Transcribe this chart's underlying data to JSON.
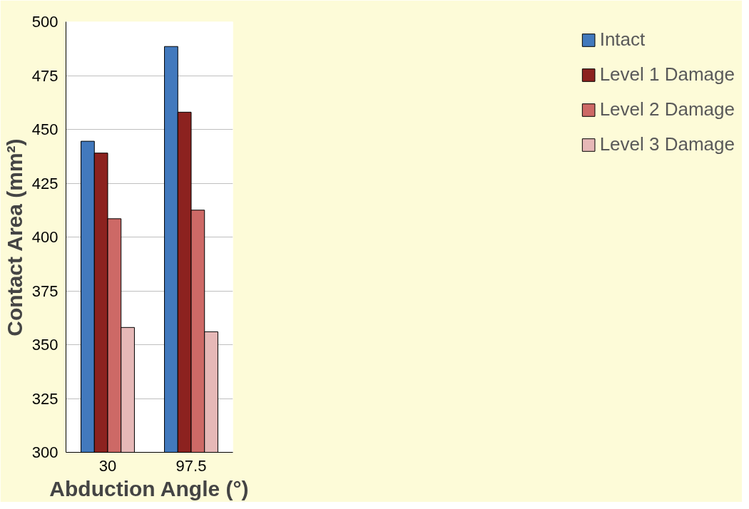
{
  "chart_data": {
    "type": "bar",
    "xlabel": "Abduction Angle (°)",
    "ylabel": "Contact Area (mm²)",
    "categories": [
      "30",
      "97.5"
    ],
    "series": [
      {
        "name": "Intact",
        "color": "#4279bd",
        "values": [
          444.5,
          488.5
        ]
      },
      {
        "name": "Level 1 Damage",
        "color": "#8c221f",
        "values": [
          439,
          458
        ]
      },
      {
        "name": "Level 2 Damage",
        "color": "#cd6966",
        "values": [
          408.5,
          412.5
        ]
      },
      {
        "name": "Level 3 Damage",
        "color": "#e6b8b7",
        "values": [
          358,
          356
        ]
      }
    ],
    "ylim": [
      300,
      500
    ],
    "yticks": [
      300,
      325,
      350,
      375,
      400,
      425,
      450,
      475,
      500
    ],
    "grid": "y",
    "legend": "right"
  }
}
